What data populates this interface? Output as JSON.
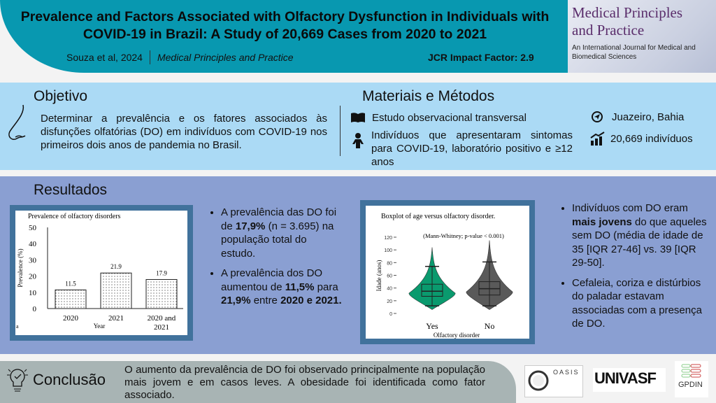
{
  "header": {
    "title": "Prevalence and Factors Associated with Olfactory Dysfunction in Individuals with COVID-19 in Brazil: A Study of 20,669 Cases from 2020 to 2021",
    "authors": "Souza et al, 2024",
    "journal": "Medical Principles and Practice",
    "impact": "JCR Impact Factor: 2.9"
  },
  "journal_cover": {
    "title_line1": "Medical Principles",
    "title_line2": "and Practice",
    "subtitle": "An International Journal for Medical and Biomedical Sciences"
  },
  "objective": {
    "heading": "Objetivo",
    "text": "Determinar a prevalência e os fatores associados às disfunções olfatórias (DO) em indivíduos com COVID-19 nos primeiros dois anos de pandemia no Brasil."
  },
  "methods": {
    "heading": "Materiais e Métodos",
    "design": "Estudo observacional transversal",
    "population": "Indivíduos que apresentaram sintomas para COVID-19, laboratório positivo e ≥12 anos",
    "location": "Juazeiro, Bahia",
    "sample": "20,669 indivíduos"
  },
  "results": {
    "heading": "Resultados",
    "left_bullets": [
      {
        "pre": "A prevalência das DO foi de ",
        "b1": "17,9%",
        "mid": " (n = 3.695) na população total do estudo.",
        "b2": "",
        "post": ""
      },
      {
        "pre": "A prevalência dos DO aumentou de ",
        "b1": "11,5%",
        "mid": " para ",
        "b2": "21,9%",
        "post": " entre ",
        "b3": "2020 e 2021."
      }
    ],
    "right_bullets": [
      {
        "pre": "Indivíduos com DO eram ",
        "b1": "mais jovens",
        "post": " do que aqueles sem DO (média de idade de 35 [IQR 27-46] vs. 39 [IQR 29-50]."
      },
      {
        "pre": "Cefaleia, coriza e distúrbios do paladar estavam associadas com a presença de DO."
      }
    ]
  },
  "chart_data": [
    {
      "type": "bar",
      "title": "Prevalence of olfactory disorders",
      "categories": [
        "2020",
        "2021",
        "2020 and 2021"
      ],
      "values": [
        11.5,
        21.9,
        17.9
      ],
      "data_labels": [
        "11.5",
        "21.9",
        "17.9"
      ],
      "xlabel": "Year",
      "ylabel": "Prevalence (%)",
      "ylim": [
        0,
        50
      ],
      "yticks": [
        "0",
        "10",
        "20",
        "30",
        "40",
        "50"
      ],
      "panel_label": "a"
    },
    {
      "type": "boxplot",
      "title": "Boxplot of age versus olfactory disorder.",
      "annotation": "(Mann-Whitney; p-value < 0.001)",
      "categories": [
        "Yes",
        "No"
      ],
      "xlabel": "Olfactory disorder",
      "ylabel": "Idade (anos)",
      "ylim": [
        0,
        120
      ],
      "yticks": [
        "0",
        "20",
        "40",
        "60",
        "80",
        "100",
        "120"
      ],
      "series": [
        {
          "name": "Yes",
          "median": 35,
          "q1": 27,
          "q3": 46,
          "whisker_low": 12,
          "whisker_high": 74,
          "max": 104,
          "color": "#0a9a6e"
        },
        {
          "name": "No",
          "median": 39,
          "q1": 29,
          "q3": 50,
          "whisker_low": 12,
          "whisker_high": 81,
          "max": 115,
          "color": "#5a5a5a"
        }
      ]
    }
  ],
  "conclusion": {
    "heading": "Conclusão",
    "text": "O aumento da prevalência de DO foi observado principalmente na população mais jovem e em casos leves. A obesidade foi identificada como fator associado."
  },
  "logos": {
    "oasis": "OASIS",
    "univasf": "UNIVASF",
    "gpdin": "GPDIN"
  }
}
